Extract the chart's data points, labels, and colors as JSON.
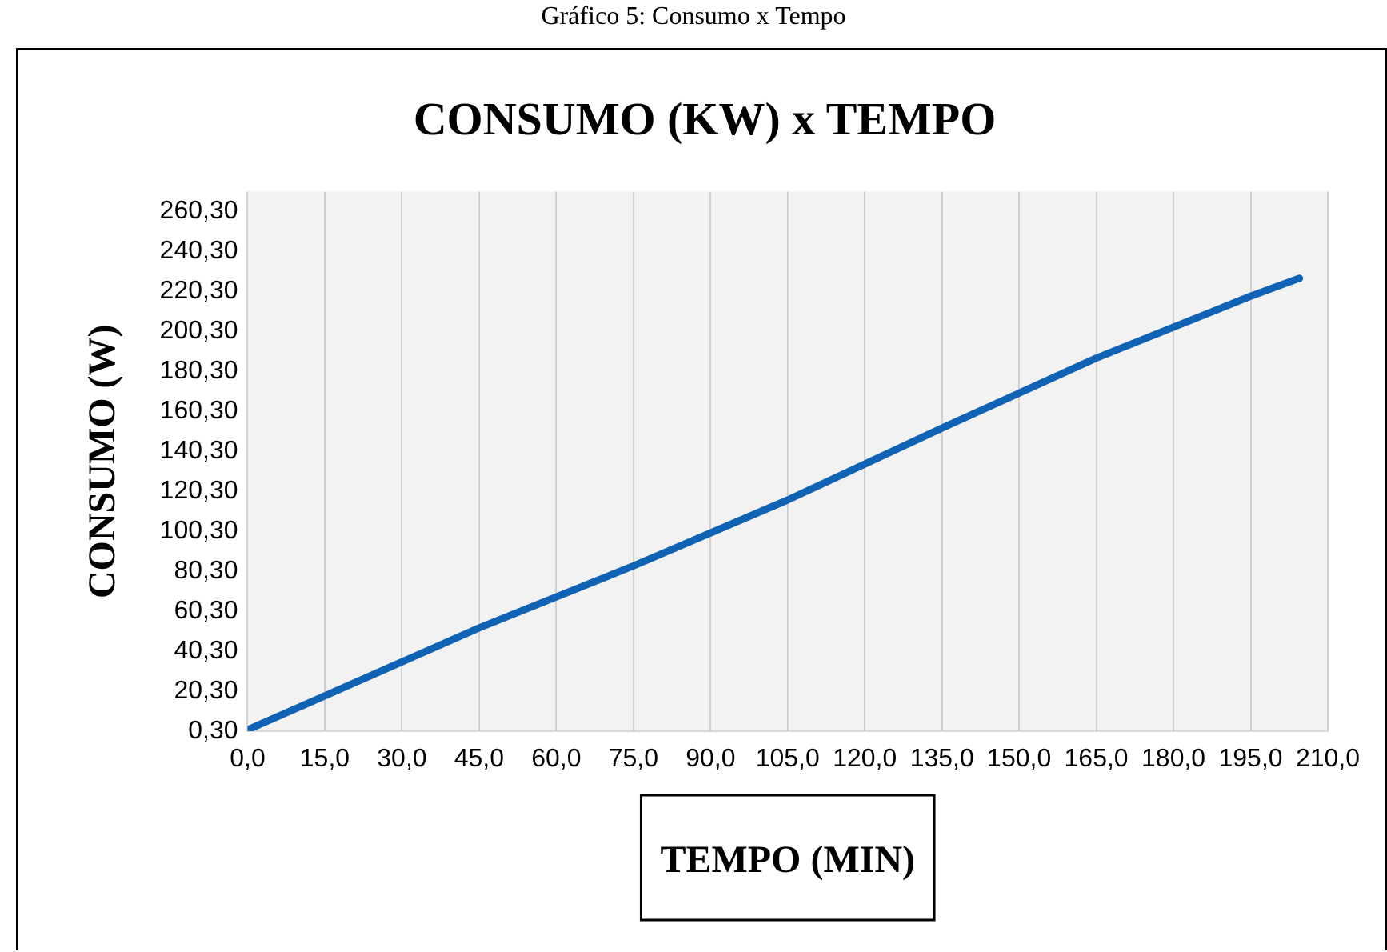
{
  "chart_data": {
    "type": "line",
    "title": "CONSUMO (KW) x TEMPO",
    "xlabel": "TEMPO (MIN)",
    "ylabel": "CONSUMO (W)",
    "annotations": [
      "Gráfico 5: Consumo x Tempo"
    ],
    "series": [
      {
        "color": "#0f62b4",
        "x": [
          0,
          15,
          45,
          75,
          105,
          135,
          165,
          195,
          204.5
        ],
        "values": [
          1,
          18,
          52,
          83,
          116,
          152,
          187,
          218,
          227
        ]
      }
    ],
    "xlim": [
      0,
      210
    ],
    "xticks": [
      {
        "value": 0,
        "label": "0,0"
      },
      {
        "value": 15,
        "label": "15,0"
      },
      {
        "value": 30,
        "label": "30,0"
      },
      {
        "value": 45,
        "label": "45,0"
      },
      {
        "value": 60,
        "label": "60,0"
      },
      {
        "value": 75,
        "label": "75,0"
      },
      {
        "value": 90,
        "label": "90,0"
      },
      {
        "value": 105,
        "label": "105,0"
      },
      {
        "value": 120,
        "label": "120,0"
      },
      {
        "value": 135,
        "label": "135,0"
      },
      {
        "value": 150,
        "label": "150,0"
      },
      {
        "value": 165,
        "label": "165,0"
      },
      {
        "value": 180,
        "label": "180,0"
      },
      {
        "value": 195,
        "label": "195,0"
      },
      {
        "value": 210,
        "label": "210,0"
      }
    ],
    "ylim": [
      0.3,
      270.3
    ],
    "yticks": [
      {
        "value": 0.3,
        "label": "0,30"
      },
      {
        "value": 20.3,
        "label": "20,30"
      },
      {
        "value": 40.3,
        "label": "40,30"
      },
      {
        "value": 60.3,
        "label": "60,30"
      },
      {
        "value": 80.3,
        "label": "80,30"
      },
      {
        "value": 100.3,
        "label": "100,30"
      },
      {
        "value": 120.3,
        "label": "120,30"
      },
      {
        "value": 140.3,
        "label": "140,30"
      },
      {
        "value": 160.3,
        "label": "160,30"
      },
      {
        "value": 180.3,
        "label": "180,30"
      },
      {
        "value": 200.3,
        "label": "200,30"
      },
      {
        "value": 220.3,
        "label": "220,30"
      },
      {
        "value": 240.3,
        "label": "240,30"
      },
      {
        "value": 260.3,
        "label": "260,30"
      }
    ],
    "grid": "x",
    "legend": false,
    "marker": "none",
    "line_style": "solid"
  }
}
